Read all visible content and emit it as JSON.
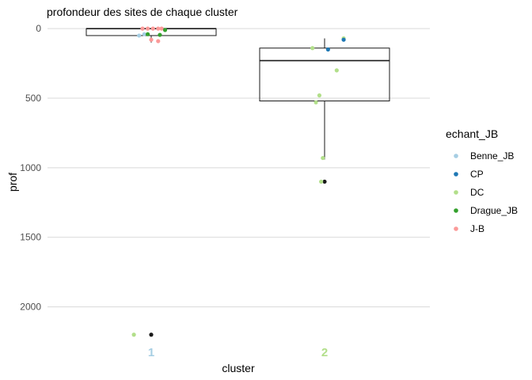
{
  "chart_data": {
    "type": "boxplot",
    "title": "profondeur des sites de chaque cluster",
    "xlabel": "cluster",
    "ylabel": "prof",
    "y_reversed": true,
    "ylim": [
      -35,
      2230
    ],
    "yticks": [
      0,
      500,
      1000,
      1500,
      2000
    ],
    "categories": [
      "1",
      "2"
    ],
    "category_colors": [
      "#a6cee3",
      "#b2df8a"
    ],
    "grid": true,
    "legend": {
      "title": "echant_JB",
      "position": "right",
      "entries": [
        {
          "label": "Benne_JB",
          "color": "#a6cee3"
        },
        {
          "label": "CP",
          "color": "#1f78b4"
        },
        {
          "label": "DC",
          "color": "#b2df8a"
        },
        {
          "label": "Drague_JB",
          "color": "#33a02c"
        },
        {
          "label": "J-B",
          "color": "#fb9a99"
        }
      ]
    },
    "boxes": [
      {
        "category": "1",
        "q1": 0,
        "median": 0,
        "q3": 50,
        "whisker_low": 0,
        "whisker_high": 100,
        "outliers": [
          2200
        ]
      },
      {
        "category": "2",
        "q1": 140,
        "median": 230,
        "q3": 520,
        "whisker_low": 70,
        "whisker_high": 940,
        "outliers": [
          1100
        ]
      }
    ],
    "points": [
      {
        "category": "1",
        "jitter": -0.05,
        "y": 0,
        "group": "J-B"
      },
      {
        "category": "1",
        "jitter": -0.02,
        "y": 0,
        "group": "J-B"
      },
      {
        "category": "1",
        "jitter": 0.01,
        "y": 0,
        "group": "J-B"
      },
      {
        "category": "1",
        "jitter": 0.04,
        "y": 0,
        "group": "J-B"
      },
      {
        "category": "1",
        "jitter": 0.06,
        "y": 0,
        "group": "J-B"
      },
      {
        "category": "1",
        "jitter": 0.08,
        "y": 10,
        "group": "Drague_JB"
      },
      {
        "category": "1",
        "jitter": -0.07,
        "y": 50,
        "group": "Benne_JB"
      },
      {
        "category": "1",
        "jitter": -0.04,
        "y": 40,
        "group": "Benne_JB"
      },
      {
        "category": "1",
        "jitter": -0.02,
        "y": 40,
        "group": "Drague_JB"
      },
      {
        "category": "1",
        "jitter": 0.05,
        "y": 45,
        "group": "Drague_JB"
      },
      {
        "category": "1",
        "jitter": 0.0,
        "y": 80,
        "group": "J-B"
      },
      {
        "category": "1",
        "jitter": 0.04,
        "y": 90,
        "group": "J-B"
      },
      {
        "category": "1",
        "jitter": -0.1,
        "y": 2200,
        "group": "DC"
      },
      {
        "category": "2",
        "jitter": 0.11,
        "y": 70,
        "group": "DC"
      },
      {
        "category": "2",
        "jitter": 0.11,
        "y": 80,
        "group": "CP"
      },
      {
        "category": "2",
        "jitter": 0.02,
        "y": 150,
        "group": "CP"
      },
      {
        "category": "2",
        "jitter": -0.07,
        "y": 140,
        "group": "DC"
      },
      {
        "category": "2",
        "jitter": 0.07,
        "y": 300,
        "group": "DC"
      },
      {
        "category": "2",
        "jitter": -0.03,
        "y": 480,
        "group": "DC"
      },
      {
        "category": "2",
        "jitter": -0.05,
        "y": 530,
        "group": "DC"
      },
      {
        "category": "2",
        "jitter": -0.01,
        "y": 930,
        "group": "DC"
      },
      {
        "category": "2",
        "jitter": -0.02,
        "y": 1100,
        "group": "DC"
      }
    ]
  }
}
